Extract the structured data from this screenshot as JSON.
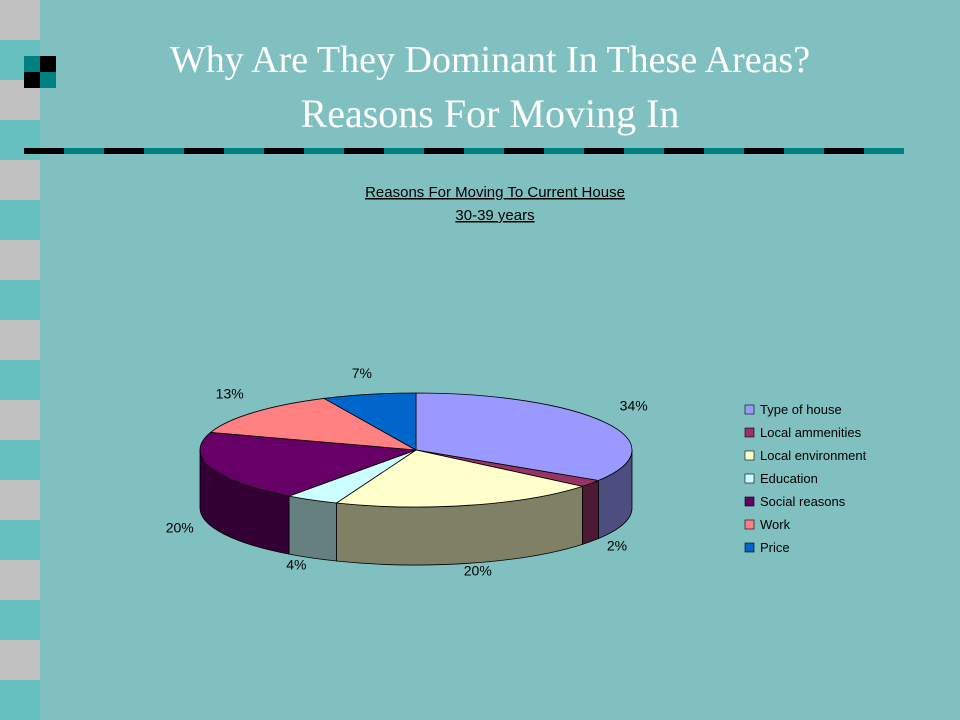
{
  "slide": {
    "title": "Why Are They Dominant In These Areas?",
    "subtitle": "Reasons For Moving In"
  },
  "chart_data": {
    "type": "pie",
    "title": "Reasons For Moving To Current House",
    "subtitle": "30-39 years",
    "categories": [
      "Type of house",
      "Local ammenities",
      "Local environment",
      "Education",
      "Social reasons",
      "Work",
      "Price"
    ],
    "values": [
      34,
      2,
      20,
      4,
      20,
      13,
      7
    ],
    "value_labels": [
      "34%",
      "2%",
      "20%",
      "4%",
      "20%",
      "13%",
      "7%"
    ],
    "colors": [
      "#9999ff",
      "#993366",
      "#ffffcc",
      "#ccffff",
      "#660066",
      "#ff8080",
      "#0066cc"
    ],
    "legend": "right",
    "three_d": true
  }
}
